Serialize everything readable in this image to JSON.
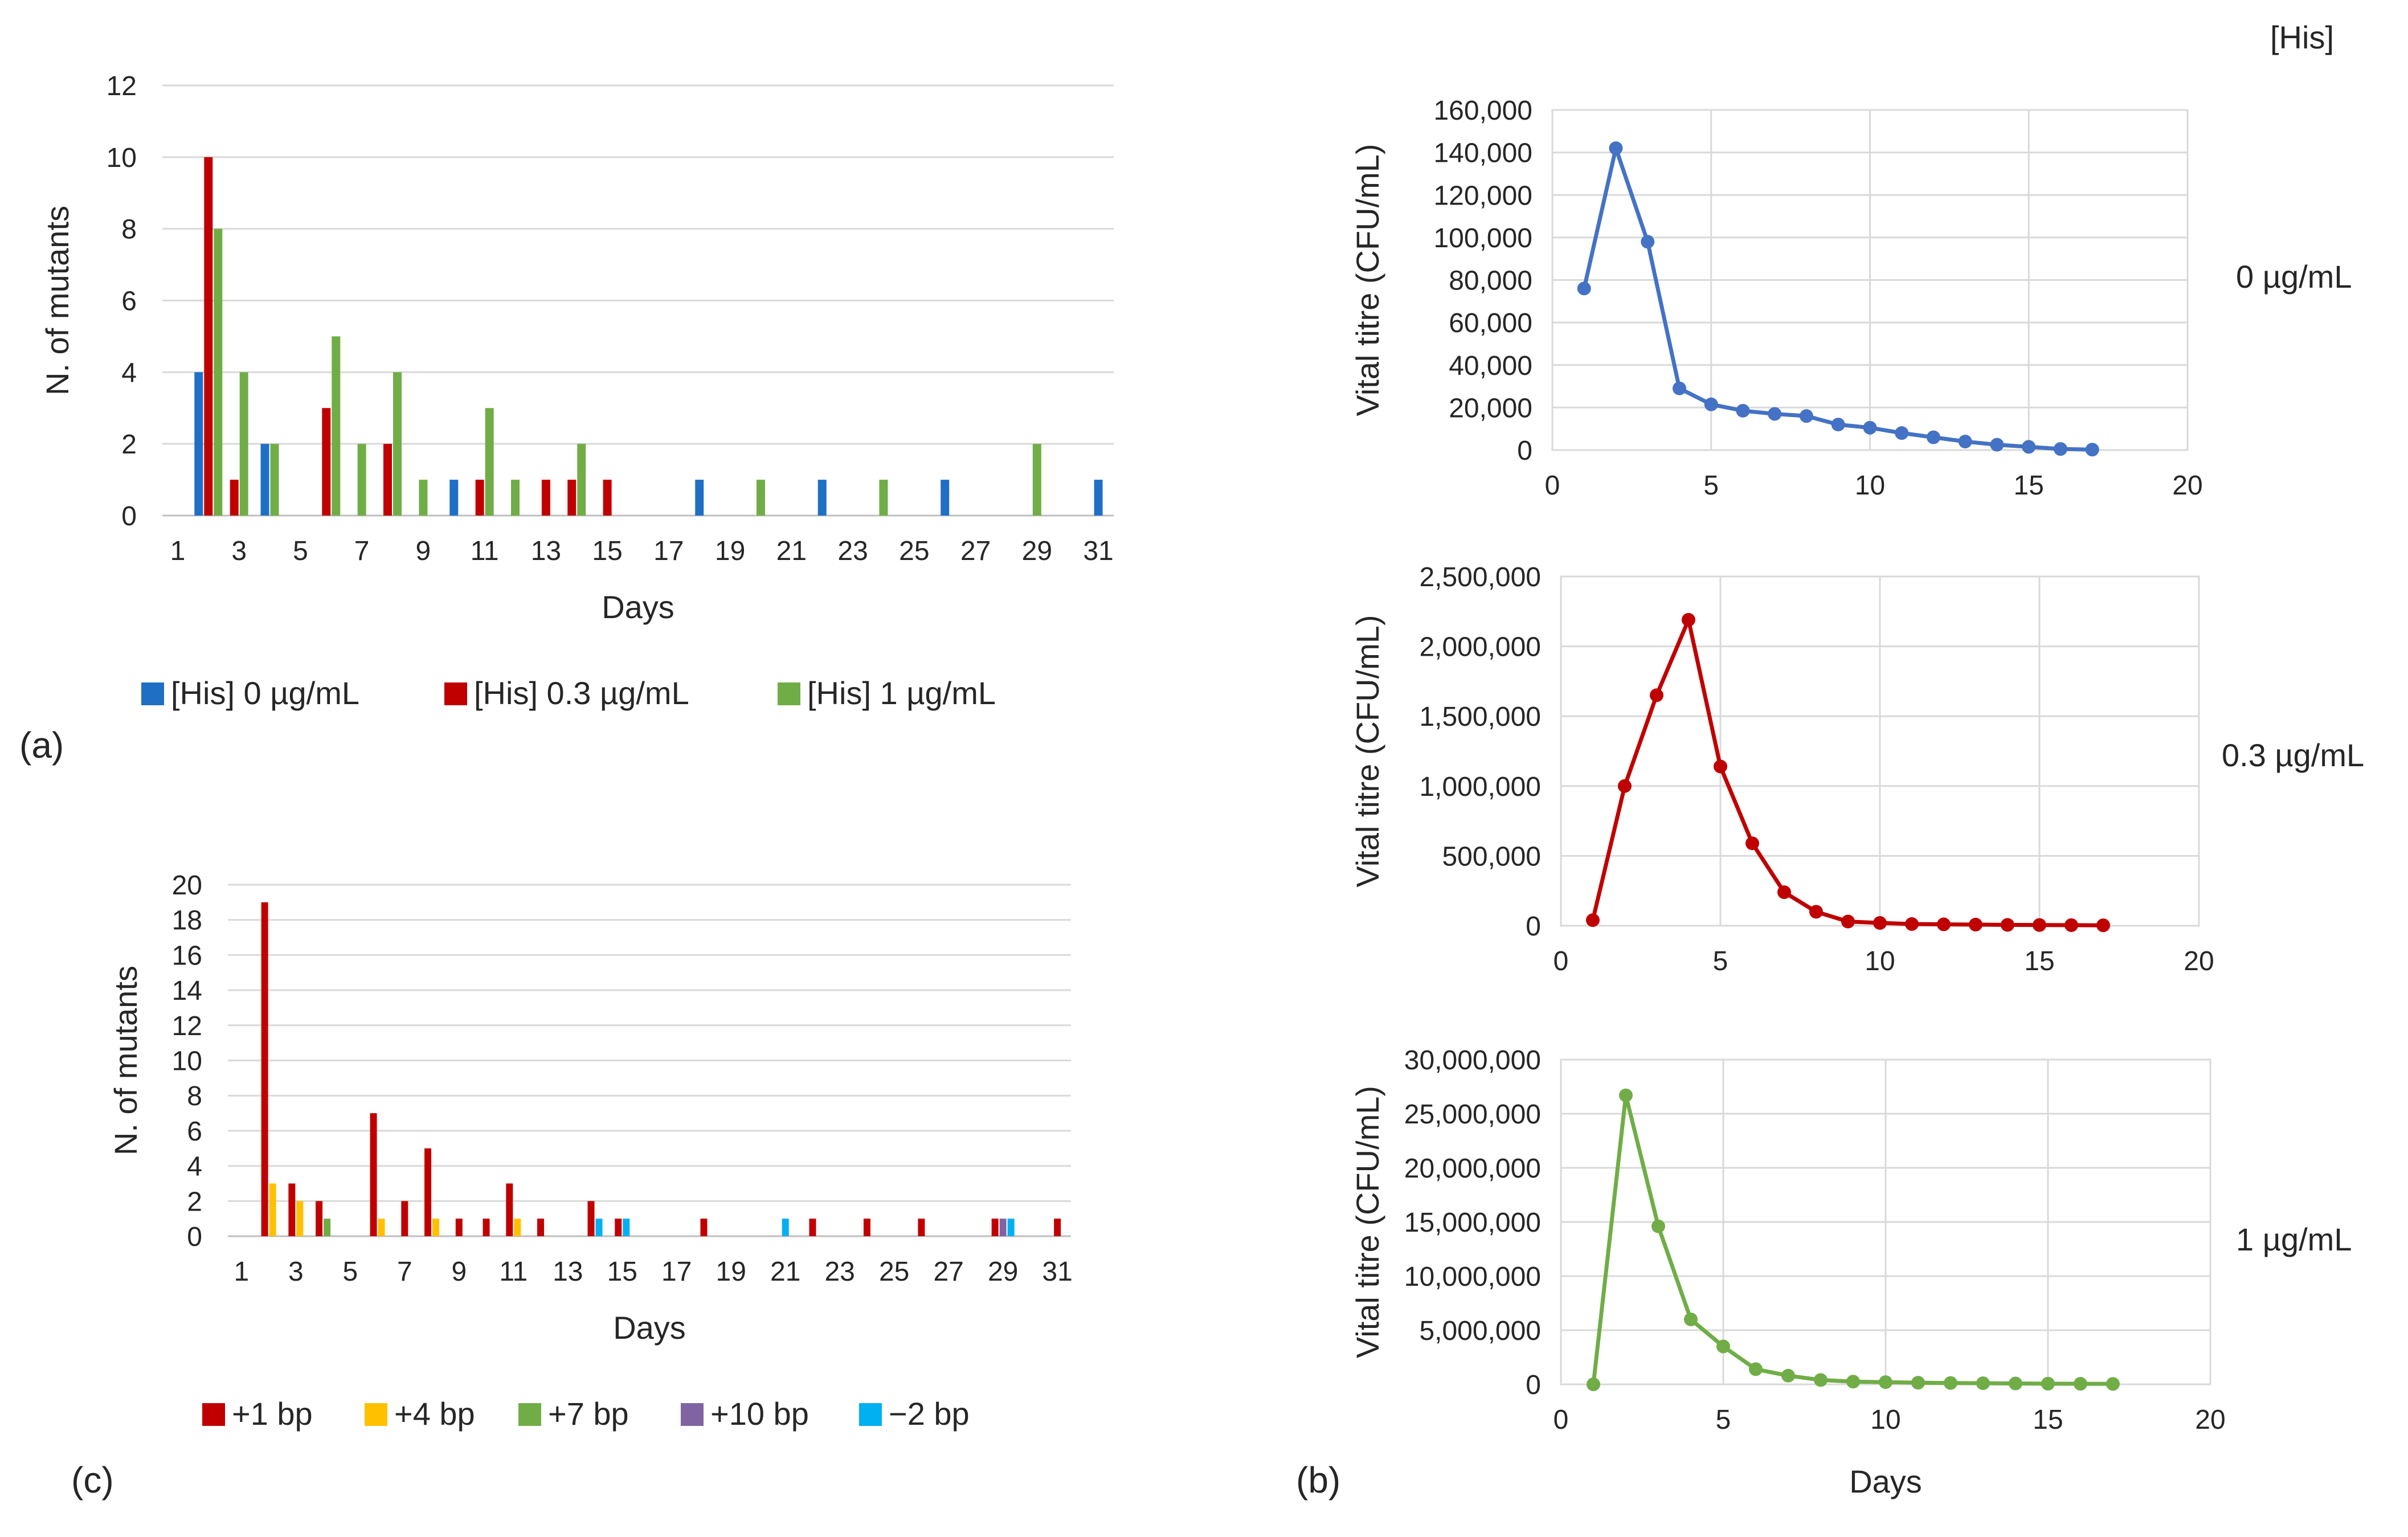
{
  "panels": {
    "a": {
      "label": "(a)"
    },
    "b": {
      "label": "(b)",
      "corner_label": "[His]"
    },
    "c": {
      "label": "(c)"
    }
  },
  "colors": {
    "blue": "#4472C4",
    "blue_bar": "#1F6FC5",
    "red": "#C00000",
    "green": "#70AD47",
    "yellow": "#FFC000",
    "purple": "#8064A2",
    "cyan": "#00B0F0",
    "grid": "#D9D9D9",
    "axis": "#BFBFBF"
  },
  "chart_data": [
    {
      "id": "a",
      "type": "bar",
      "title": "",
      "xlabel": "Days",
      "ylabel": "N. of mutants",
      "xlim": [
        1,
        31
      ],
      "ylim": [
        0,
        12
      ],
      "yticks": [
        0,
        2,
        4,
        6,
        8,
        10,
        12
      ],
      "xticks": [
        1,
        3,
        5,
        7,
        9,
        11,
        13,
        15,
        17,
        19,
        21,
        23,
        25,
        27,
        29,
        31
      ],
      "grid": true,
      "legend": "bottom",
      "series": [
        {
          "name": "[His] 0 µg/mL",
          "color": "#1F6FC5",
          "points": [
            [
              2,
              4
            ],
            [
              4,
              2
            ],
            [
              10,
              1
            ],
            [
              18,
              1
            ],
            [
              22,
              1
            ],
            [
              26,
              1
            ],
            [
              31,
              1
            ]
          ]
        },
        {
          "name": "[His] 0.3 µg/mL",
          "color": "#C00000",
          "points": [
            [
              2,
              10
            ],
            [
              3,
              1
            ],
            [
              6,
              3
            ],
            [
              8,
              2
            ],
            [
              11,
              1
            ],
            [
              13,
              1
            ],
            [
              14,
              1
            ],
            [
              15,
              1
            ]
          ]
        },
        {
          "name": "[His] 1 µg/mL",
          "color": "#70AD47",
          "points": [
            [
              2,
              8
            ],
            [
              3,
              4
            ],
            [
              4,
              2
            ],
            [
              6,
              5
            ],
            [
              7,
              2
            ],
            [
              8,
              4
            ],
            [
              9,
              1
            ],
            [
              11,
              3
            ],
            [
              12,
              1
            ],
            [
              14,
              2
            ],
            [
              20,
              1
            ],
            [
              24,
              1
            ],
            [
              29,
              2
            ]
          ]
        }
      ]
    },
    {
      "id": "c",
      "type": "bar",
      "title": "",
      "xlabel": "Days",
      "ylabel": "N. of mutants",
      "xlim": [
        1,
        31
      ],
      "ylim": [
        0,
        20
      ],
      "yticks": [
        0,
        2,
        4,
        6,
        8,
        10,
        12,
        14,
        16,
        18,
        20
      ],
      "xticks": [
        1,
        3,
        5,
        7,
        9,
        11,
        13,
        15,
        17,
        19,
        21,
        23,
        25,
        27,
        29,
        31
      ],
      "grid": true,
      "legend": "bottom",
      "series": [
        {
          "name": "+1 bp",
          "color": "#C00000",
          "points": [
            [
              2,
              19
            ],
            [
              3,
              3
            ],
            [
              4,
              2
            ],
            [
              6,
              7
            ],
            [
              7,
              2
            ],
            [
              8,
              5
            ],
            [
              9,
              1
            ],
            [
              10,
              1
            ],
            [
              11,
              3
            ],
            [
              12,
              1
            ],
            [
              14,
              2
            ],
            [
              15,
              1
            ],
            [
              18,
              1
            ],
            [
              22,
              1
            ],
            [
              24,
              1
            ],
            [
              26,
              1
            ],
            [
              29,
              1
            ],
            [
              31,
              1
            ]
          ]
        },
        {
          "name": "+4 bp",
          "color": "#FFC000",
          "points": [
            [
              2,
              3
            ],
            [
              3,
              2
            ],
            [
              6,
              1
            ],
            [
              8,
              1
            ],
            [
              11,
              1
            ]
          ]
        },
        {
          "name": "+7 bp",
          "color": "#70AD47",
          "points": [
            [
              4,
              1
            ]
          ]
        },
        {
          "name": "+10 bp",
          "color": "#8064A2",
          "points": [
            [
              29,
              1
            ]
          ]
        },
        {
          "name": "−2 bp",
          "color": "#00B0F0",
          "points": [
            [
              14,
              1
            ],
            [
              15,
              1
            ],
            [
              21,
              1
            ],
            [
              29,
              1
            ]
          ]
        }
      ]
    },
    {
      "id": "b1",
      "type": "line",
      "title": "",
      "series_label": "0 µg/mL",
      "xlabel": "",
      "ylabel": "Vital titre (CFU/mL)",
      "xlim": [
        0,
        20
      ],
      "ylim": [
        0,
        160000
      ],
      "xticks": [
        0,
        5,
        10,
        15,
        20
      ],
      "yticks": [
        0,
        20000,
        40000,
        60000,
        80000,
        100000,
        120000,
        140000,
        160000
      ],
      "ytick_labels": [
        "0",
        "20,000",
        "40,000",
        "60,000",
        "80,000",
        "100,000",
        "120,000",
        "140,000",
        "160,000"
      ],
      "grid": true,
      "color": "#4472C4",
      "x": [
        1,
        2,
        3,
        4,
        5,
        6,
        7,
        8,
        9,
        10,
        11,
        12,
        13,
        14,
        15,
        16,
        17
      ],
      "y": [
        76000,
        142000,
        98000,
        29000,
        21500,
        18500,
        17000,
        16000,
        12000,
        10500,
        8000,
        6000,
        4000,
        2500,
        1500,
        500,
        200
      ]
    },
    {
      "id": "b2",
      "type": "line",
      "title": "",
      "series_label": "0.3 µg/mL",
      "xlabel": "",
      "ylabel": "Vital titre (CFU/mL)",
      "xlim": [
        0,
        20
      ],
      "ylim": [
        0,
        2500000
      ],
      "xticks": [
        0,
        5,
        10,
        15,
        20
      ],
      "yticks": [
        0,
        500000,
        1000000,
        1500000,
        2000000,
        2500000
      ],
      "ytick_labels": [
        "0",
        "500,000",
        "1,000,000",
        "1,500,000",
        "2,000,000",
        "2,500,000"
      ],
      "grid": true,
      "color": "#C00000",
      "x": [
        1,
        2,
        3,
        4,
        5,
        6,
        7,
        8,
        9,
        10,
        11,
        12,
        13,
        14,
        15,
        16,
        17
      ],
      "y": [
        40000,
        1000000,
        1650000,
        2190000,
        1140000,
        590000,
        240000,
        100000,
        30000,
        20000,
        12000,
        10000,
        8000,
        6000,
        5000,
        4000,
        3000
      ]
    },
    {
      "id": "b3",
      "type": "line",
      "title": "",
      "series_label": "1 µg/mL",
      "xlabel": "Days",
      "ylabel": "Vital titre (CFU/mL)",
      "xlim": [
        0,
        20
      ],
      "ylim": [
        0,
        30000000
      ],
      "xticks": [
        0,
        5,
        10,
        15,
        20
      ],
      "yticks": [
        0,
        5000000,
        10000000,
        15000000,
        20000000,
        25000000,
        30000000
      ],
      "ytick_labels": [
        "0",
        "5,000,000",
        "10,000,000",
        "15,000,000",
        "20,000,000",
        "25,000,000",
        "30,000,000"
      ],
      "grid": true,
      "color": "#70AD47",
      "x": [
        1,
        2,
        3,
        4,
        5,
        6,
        7,
        8,
        9,
        10,
        11,
        12,
        13,
        14,
        15,
        16,
        17
      ],
      "y": [
        0,
        26700000,
        14600000,
        6000000,
        3500000,
        1400000,
        800000,
        400000,
        250000,
        200000,
        150000,
        120000,
        100000,
        80000,
        60000,
        50000,
        40000
      ]
    }
  ]
}
